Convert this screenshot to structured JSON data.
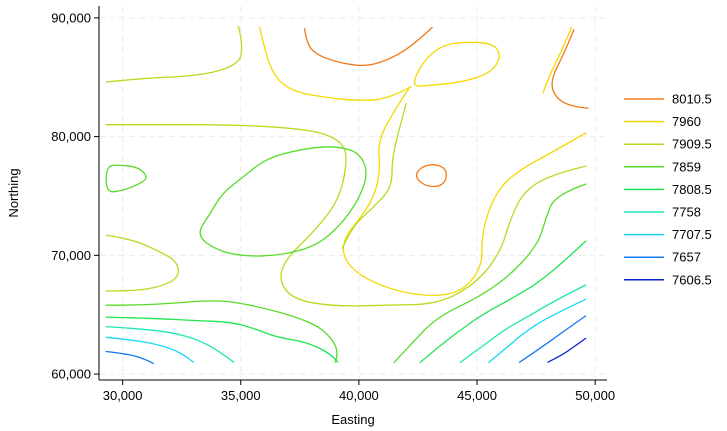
{
  "chart_data": {
    "type": "contour",
    "xlabel": "Easting",
    "ylabel": "Northing",
    "xlim": [
      29000,
      50500
    ],
    "ylim": [
      59500,
      91000
    ],
    "xticks": [
      30000,
      35000,
      40000,
      45000,
      50000
    ],
    "xtick_labels": [
      "30,000",
      "35,000",
      "40,000",
      "45,000",
      "50,000"
    ],
    "yticks": [
      60000,
      70000,
      80000,
      90000
    ],
    "ytick_labels": [
      "60,000",
      "70,000",
      "80,000",
      "90,000"
    ],
    "grid": true,
    "legend_position": "right",
    "levels": [
      {
        "label": "8010.5",
        "color": "#f07a1a"
      },
      {
        "label": "7960",
        "color": "#f5d800"
      },
      {
        "label": "7909.5",
        "color": "#b4dc1e"
      },
      {
        "label": "7859",
        "color": "#55dc28"
      },
      {
        "label": "7808.5",
        "color": "#1ee650"
      },
      {
        "label": "7758",
        "color": "#1ee6b4"
      },
      {
        "label": "7707.5",
        "color": "#19d7f5"
      },
      {
        "label": "7657",
        "color": "#1478f0"
      },
      {
        "label": "7606.5",
        "color": "#0a1ed2"
      }
    ],
    "contours": [
      {
        "level": "8010.5",
        "points": [
          [
            37700,
            89100
          ],
          [
            37800,
            87700
          ],
          [
            38300,
            86800
          ],
          [
            39200,
            86200
          ],
          [
            40300,
            85900
          ],
          [
            41300,
            86500
          ],
          [
            42300,
            87700
          ],
          [
            43100,
            89200
          ]
        ]
      },
      {
        "level": "8010.5",
        "points": [
          [
            49100,
            89000
          ],
          [
            48700,
            87100
          ],
          [
            48100,
            84700
          ],
          [
            48300,
            83300
          ],
          [
            49000,
            82500
          ],
          [
            49700,
            82400
          ]
        ]
      },
      {
        "level": "8010.5",
        "closed": true,
        "points": [
          [
            42700,
            77500
          ],
          [
            43200,
            77700
          ],
          [
            43700,
            77300
          ],
          [
            43700,
            76300
          ],
          [
            43400,
            75800
          ],
          [
            42900,
            75800
          ],
          [
            42500,
            76300
          ],
          [
            42400,
            76900
          ]
        ]
      },
      {
        "level": "7960",
        "points": [
          [
            35800,
            89200
          ],
          [
            36100,
            86500
          ],
          [
            36600,
            84600
          ],
          [
            37400,
            83700
          ],
          [
            38600,
            83300
          ],
          [
            40000,
            83000
          ],
          [
            41300,
            83200
          ],
          [
            42200,
            84200
          ]
        ]
      },
      {
        "level": "7960",
        "closed": true,
        "points": [
          [
            42200,
            84200
          ],
          [
            42700,
            86300
          ],
          [
            43500,
            87700
          ],
          [
            44600,
            88000
          ],
          [
            45800,
            87800
          ],
          [
            46000,
            86500
          ],
          [
            45500,
            85300
          ],
          [
            44400,
            84600
          ],
          [
            43000,
            84300
          ]
        ]
      },
      {
        "level": "7960",
        "points": [
          [
            49000,
            89200
          ],
          [
            48600,
            87300
          ],
          [
            48000,
            84900
          ],
          [
            47800,
            83700
          ]
        ]
      },
      {
        "level": "7960",
        "points": [
          [
            42100,
            84000
          ],
          [
            41300,
            81600
          ],
          [
            40800,
            79400
          ],
          [
            40900,
            77300
          ],
          [
            40700,
            75200
          ],
          [
            40100,
            73200
          ],
          [
            39400,
            71600
          ],
          [
            39300,
            69900
          ],
          [
            40000,
            68300
          ],
          [
            41500,
            67000
          ],
          [
            43200,
            66500
          ],
          [
            44400,
            67000
          ],
          [
            45200,
            69000
          ],
          [
            45200,
            71300
          ],
          [
            45400,
            73300
          ],
          [
            45900,
            75600
          ],
          [
            46800,
            77200
          ],
          [
            48200,
            78700
          ],
          [
            49600,
            80300
          ]
        ]
      },
      {
        "level": "7909.5",
        "points": [
          [
            29300,
            84600
          ],
          [
            30800,
            84900
          ],
          [
            33000,
            85100
          ],
          [
            34500,
            85700
          ],
          [
            35200,
            86900
          ],
          [
            34900,
            89300
          ]
        ]
      },
      {
        "level": "7909.5",
        "points": [
          [
            29300,
            81000
          ],
          [
            31800,
            81000
          ],
          [
            33800,
            81000
          ],
          [
            35800,
            80900
          ],
          [
            37700,
            80600
          ],
          [
            38800,
            80100
          ],
          [
            39500,
            79000
          ],
          [
            39400,
            76500
          ],
          [
            39000,
            74200
          ],
          [
            38000,
            71800
          ],
          [
            36900,
            69700
          ],
          [
            36600,
            67900
          ],
          [
            37200,
            66300
          ],
          [
            38900,
            65700
          ],
          [
            41200,
            65800
          ],
          [
            43400,
            65900
          ],
          [
            45000,
            67700
          ],
          [
            46000,
            70300
          ],
          [
            46400,
            73000
          ],
          [
            47000,
            75500
          ],
          [
            48300,
            76900
          ],
          [
            49600,
            77500
          ]
        ]
      },
      {
        "level": "7909.5",
        "points": [
          [
            29300,
            71700
          ],
          [
            30300,
            71400
          ],
          [
            31500,
            70400
          ],
          [
            32300,
            69500
          ],
          [
            32400,
            68200
          ],
          [
            31700,
            67400
          ],
          [
            30500,
            67000
          ],
          [
            29300,
            67000
          ]
        ]
      },
      {
        "level": "7909.5",
        "points": [
          [
            42000,
            82800
          ],
          [
            41700,
            80600
          ],
          [
            41400,
            78100
          ],
          [
            41400,
            75700
          ],
          [
            40600,
            74000
          ],
          [
            39700,
            72400
          ],
          [
            39300,
            70600
          ]
        ]
      },
      {
        "level": "7859",
        "closed": true,
        "points": [
          [
            35100,
            76600
          ],
          [
            36100,
            78200
          ],
          [
            37700,
            79000
          ],
          [
            39000,
            79200
          ],
          [
            40000,
            78700
          ],
          [
            40400,
            77000
          ],
          [
            40000,
            74700
          ],
          [
            39200,
            72500
          ],
          [
            38200,
            70800
          ],
          [
            36700,
            70000
          ],
          [
            35200,
            69900
          ],
          [
            34000,
            70400
          ],
          [
            33100,
            71700
          ],
          [
            33700,
            73500
          ],
          [
            34200,
            75200
          ]
        ]
      },
      {
        "level": "7859",
        "closed": true,
        "points": [
          [
            29300,
            77600
          ],
          [
            30000,
            77600
          ],
          [
            30700,
            77400
          ],
          [
            31100,
            76500
          ],
          [
            30600,
            75900
          ],
          [
            29900,
            75400
          ],
          [
            29300,
            75300
          ]
        ]
      },
      {
        "level": "7859",
        "points": [
          [
            29300,
            65800
          ],
          [
            30700,
            65800
          ],
          [
            32400,
            66000
          ],
          [
            33500,
            66200
          ],
          [
            34700,
            66100
          ],
          [
            36300,
            65400
          ],
          [
            37500,
            64700
          ],
          [
            38500,
            63800
          ],
          [
            39200,
            62000
          ],
          [
            39000,
            61000
          ]
        ]
      },
      {
        "level": "7859",
        "points": [
          [
            41500,
            61000
          ],
          [
            42200,
            62500
          ],
          [
            43300,
            64800
          ],
          [
            45200,
            66600
          ],
          [
            46500,
            68500
          ],
          [
            47600,
            71000
          ],
          [
            47900,
            73100
          ],
          [
            48300,
            75100
          ],
          [
            49600,
            76000
          ]
        ]
      },
      {
        "level": "7808.5",
        "points": [
          [
            29300,
            64800
          ],
          [
            31200,
            64700
          ],
          [
            33000,
            64500
          ],
          [
            34500,
            64400
          ],
          [
            35500,
            63900
          ],
          [
            36500,
            63100
          ],
          [
            37800,
            62700
          ],
          [
            38900,
            61600
          ],
          [
            39100,
            61000
          ]
        ]
      },
      {
        "level": "7808.5",
        "points": [
          [
            42600,
            61000
          ],
          [
            43500,
            62500
          ],
          [
            44500,
            64000
          ],
          [
            45300,
            65100
          ],
          [
            46500,
            66400
          ],
          [
            48000,
            68200
          ],
          [
            49600,
            71200
          ]
        ]
      },
      {
        "level": "7758",
        "points": [
          [
            29300,
            64000
          ],
          [
            30800,
            63800
          ],
          [
            32100,
            63500
          ],
          [
            33200,
            62900
          ],
          [
            34100,
            61900
          ],
          [
            34700,
            61000
          ]
        ]
      },
      {
        "level": "7758",
        "points": [
          [
            44300,
            61000
          ],
          [
            45200,
            62300
          ],
          [
            46200,
            63800
          ],
          [
            47300,
            65000
          ],
          [
            48300,
            66200
          ],
          [
            49600,
            67500
          ]
        ]
      },
      {
        "level": "7707.5",
        "points": [
          [
            29300,
            63100
          ],
          [
            30300,
            62900
          ],
          [
            31500,
            62500
          ],
          [
            32500,
            61800
          ],
          [
            33000,
            61000
          ]
        ]
      },
      {
        "level": "7707.5",
        "points": [
          [
            45500,
            61000
          ],
          [
            46300,
            62300
          ],
          [
            47000,
            63500
          ],
          [
            48000,
            64800
          ],
          [
            49600,
            66300
          ]
        ]
      },
      {
        "level": "7657",
        "points": [
          [
            29300,
            61900
          ],
          [
            30200,
            61700
          ],
          [
            30900,
            61300
          ],
          [
            31300,
            60900
          ]
        ]
      },
      {
        "level": "7657",
        "points": [
          [
            46800,
            61000
          ],
          [
            47700,
            62200
          ],
          [
            48600,
            63500
          ],
          [
            49600,
            64900
          ]
        ]
      },
      {
        "level": "7606.5",
        "points": [
          [
            48000,
            61000
          ],
          [
            48600,
            61600
          ],
          [
            49100,
            62300
          ],
          [
            49600,
            63000
          ]
        ]
      }
    ]
  }
}
